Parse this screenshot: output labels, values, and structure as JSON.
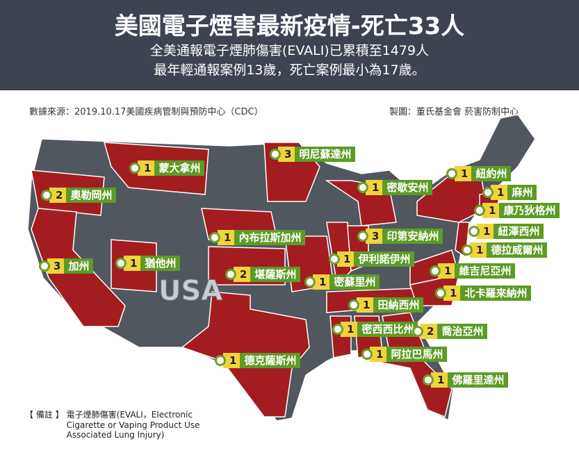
{
  "header": {
    "title": "美國電子煙害最新疫情-死亡33人",
    "subtitle_lines": [
      "全美通報電子煙肺傷害(EVALI)已累積至1479人",
      "最年輕通報案例13歲，死亡案例最小為17歲。"
    ]
  },
  "source": "數據來源：2019.10.17美國疾病管制與預防中心（CDC）",
  "producer": "製圖：董氏基金會 菸害防制中心",
  "map_label": "USA",
  "labels": [
    {
      "name": "明尼蘇達州",
      "count": 3
    },
    {
      "name": "蒙大拿州",
      "count": 1
    },
    {
      "name": "奧勒岡州",
      "count": 2
    },
    {
      "name": "密歇安州",
      "count": 1
    },
    {
      "name": "紐約州",
      "count": 1
    },
    {
      "name": "麻州",
      "count": 1
    },
    {
      "name": "康乃狄格州",
      "count": 1
    },
    {
      "name": "紐澤西州",
      "count": 1
    },
    {
      "name": "德拉威爾州",
      "count": 1
    },
    {
      "name": "內布拉斯加州",
      "count": 1
    },
    {
      "name": "印第安納州",
      "count": 3
    },
    {
      "name": "加州",
      "count": 3
    },
    {
      "name": "猶他州",
      "count": 1
    },
    {
      "name": "伊利諾伊州",
      "count": 1
    },
    {
      "name": "堪薩斯州",
      "count": 2
    },
    {
      "name": "維吉尼亞州",
      "count": 1
    },
    {
      "name": "密蘇里州",
      "count": 1
    },
    {
      "name": "北卡羅來納州",
      "count": 1
    },
    {
      "name": "田納西州",
      "count": 1
    },
    {
      "name": "密西西比州",
      "count": 1
    },
    {
      "name": "喬治亞州",
      "count": 2
    },
    {
      "name": "阿拉巴馬州",
      "count": 1
    },
    {
      "name": "德克薩斯州",
      "count": 1
    },
    {
      "name": "佛羅里達州",
      "count": 1
    }
  ],
  "note": {
    "tag": "【 備註 】",
    "lines": [
      "電子煙肺傷害(EVALI，Electronic",
      "Cigarette or Vaping Product Use",
      "Associated Lung Injury)"
    ]
  }
}
